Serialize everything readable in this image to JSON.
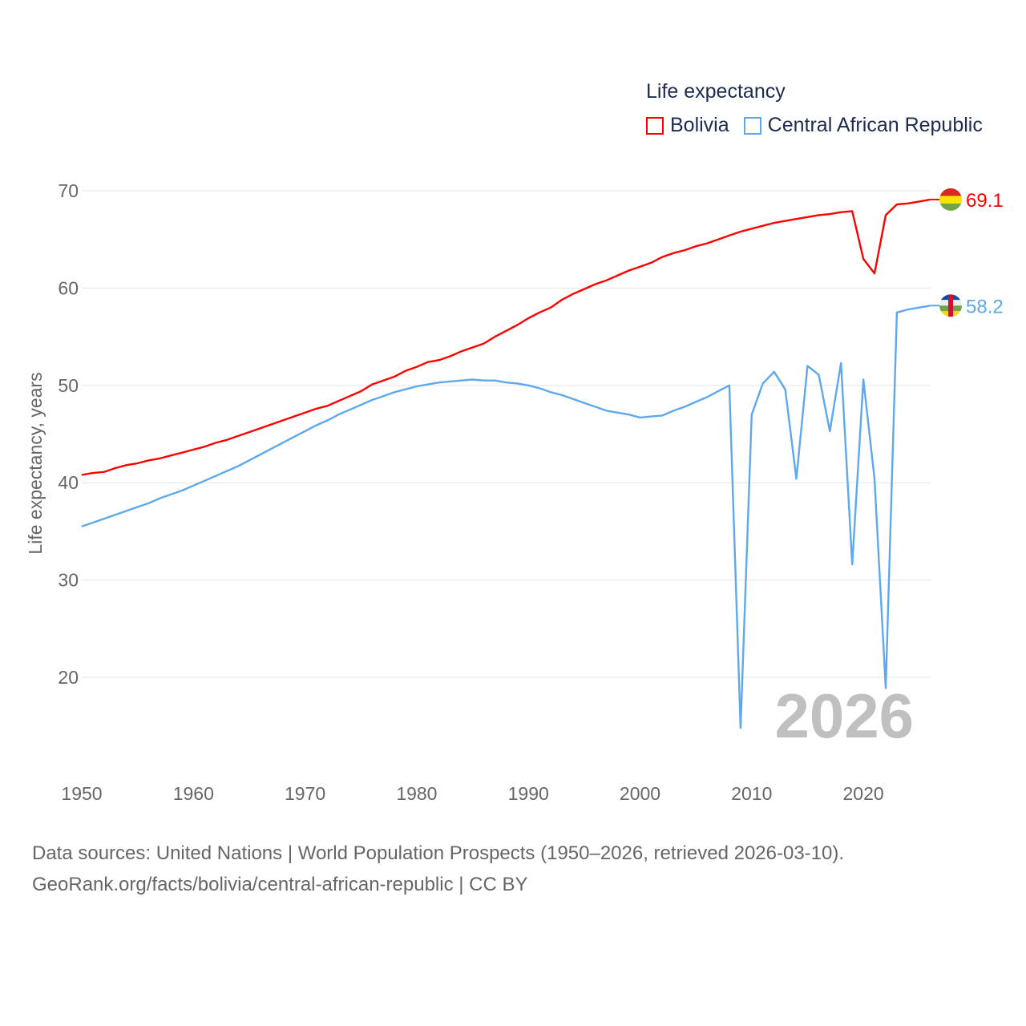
{
  "chart_data": {
    "type": "line",
    "title": "Life expectancy",
    "xlabel": "",
    "ylabel": "Life expectancy, years",
    "xlim": [
      1950,
      2026
    ],
    "ylim": [
      12,
      73
    ],
    "xticks": [
      "1950",
      "1960",
      "1970",
      "1980",
      "1990",
      "2000",
      "2010",
      "2020"
    ],
    "yticks": [
      "20",
      "30",
      "40",
      "50",
      "60",
      "70"
    ],
    "grid": true,
    "legend_position": "top-right",
    "watermark_year": "2026",
    "x": [
      1950,
      1951,
      1952,
      1953,
      1954,
      1955,
      1956,
      1957,
      1958,
      1959,
      1960,
      1961,
      1962,
      1963,
      1964,
      1965,
      1966,
      1967,
      1968,
      1969,
      1970,
      1971,
      1972,
      1973,
      1974,
      1975,
      1976,
      1977,
      1978,
      1979,
      1980,
      1981,
      1982,
      1983,
      1984,
      1985,
      1986,
      1987,
      1988,
      1989,
      1990,
      1991,
      1992,
      1993,
      1994,
      1995,
      1996,
      1997,
      1998,
      1999,
      2000,
      2001,
      2002,
      2003,
      2004,
      2005,
      2006,
      2007,
      2008,
      2009,
      2010,
      2011,
      2012,
      2013,
      2014,
      2015,
      2016,
      2017,
      2018,
      2019,
      2020,
      2021,
      2022,
      2023,
      2024,
      2025,
      2026
    ],
    "series": [
      {
        "name": "Bolivia",
        "color": "#ff0000",
        "end_label": "69.1",
        "values": [
          40.8,
          41.0,
          41.1,
          41.5,
          41.8,
          42.0,
          42.3,
          42.5,
          42.8,
          43.1,
          43.4,
          43.7,
          44.1,
          44.4,
          44.8,
          45.2,
          45.6,
          46.0,
          46.4,
          46.8,
          47.2,
          47.6,
          47.9,
          48.4,
          48.9,
          49.4,
          50.1,
          50.5,
          50.9,
          51.5,
          51.9,
          52.4,
          52.6,
          53.0,
          53.5,
          53.9,
          54.3,
          55.0,
          55.6,
          56.2,
          56.9,
          57.5,
          58.0,
          58.8,
          59.4,
          59.9,
          60.4,
          60.8,
          61.3,
          61.8,
          62.2,
          62.6,
          63.2,
          63.6,
          63.9,
          64.3,
          64.6,
          65.0,
          65.4,
          65.8,
          66.1,
          66.4,
          66.7,
          66.9,
          67.1,
          67.3,
          67.5,
          67.6,
          67.8,
          67.9,
          63.0,
          61.5,
          67.5,
          68.6,
          68.7,
          68.9,
          69.1
        ]
      },
      {
        "name": "Central African Republic",
        "color": "#5ea8ee",
        "end_label": "58.2",
        "values": [
          35.5,
          35.9,
          36.3,
          36.7,
          37.1,
          37.5,
          37.9,
          38.4,
          38.8,
          39.2,
          39.7,
          40.2,
          40.7,
          41.2,
          41.7,
          42.3,
          42.9,
          43.5,
          44.1,
          44.7,
          45.3,
          45.9,
          46.4,
          47.0,
          47.5,
          48.0,
          48.5,
          48.9,
          49.3,
          49.6,
          49.9,
          50.1,
          50.3,
          50.4,
          50.5,
          50.6,
          50.5,
          50.5,
          50.3,
          50.2,
          50.0,
          49.7,
          49.3,
          49.0,
          48.6,
          48.2,
          47.8,
          47.4,
          47.2,
          47.0,
          46.7,
          46.8,
          46.9,
          47.4,
          47.8,
          48.3,
          48.8,
          49.4,
          50.0,
          14.8,
          47.0,
          50.2,
          51.4,
          49.6,
          40.4,
          52.0,
          51.1,
          45.3,
          52.3,
          31.6,
          50.6,
          40.4,
          18.9,
          57.5,
          57.8,
          58.0,
          58.2
        ]
      }
    ]
  },
  "source": {
    "line1": "Data sources: United Nations | World Population Prospects (1950–2026, retrieved 2026-03-10).",
    "line2": "GeoRank.org/facts/bolivia/central-african-republic | CC BY"
  }
}
